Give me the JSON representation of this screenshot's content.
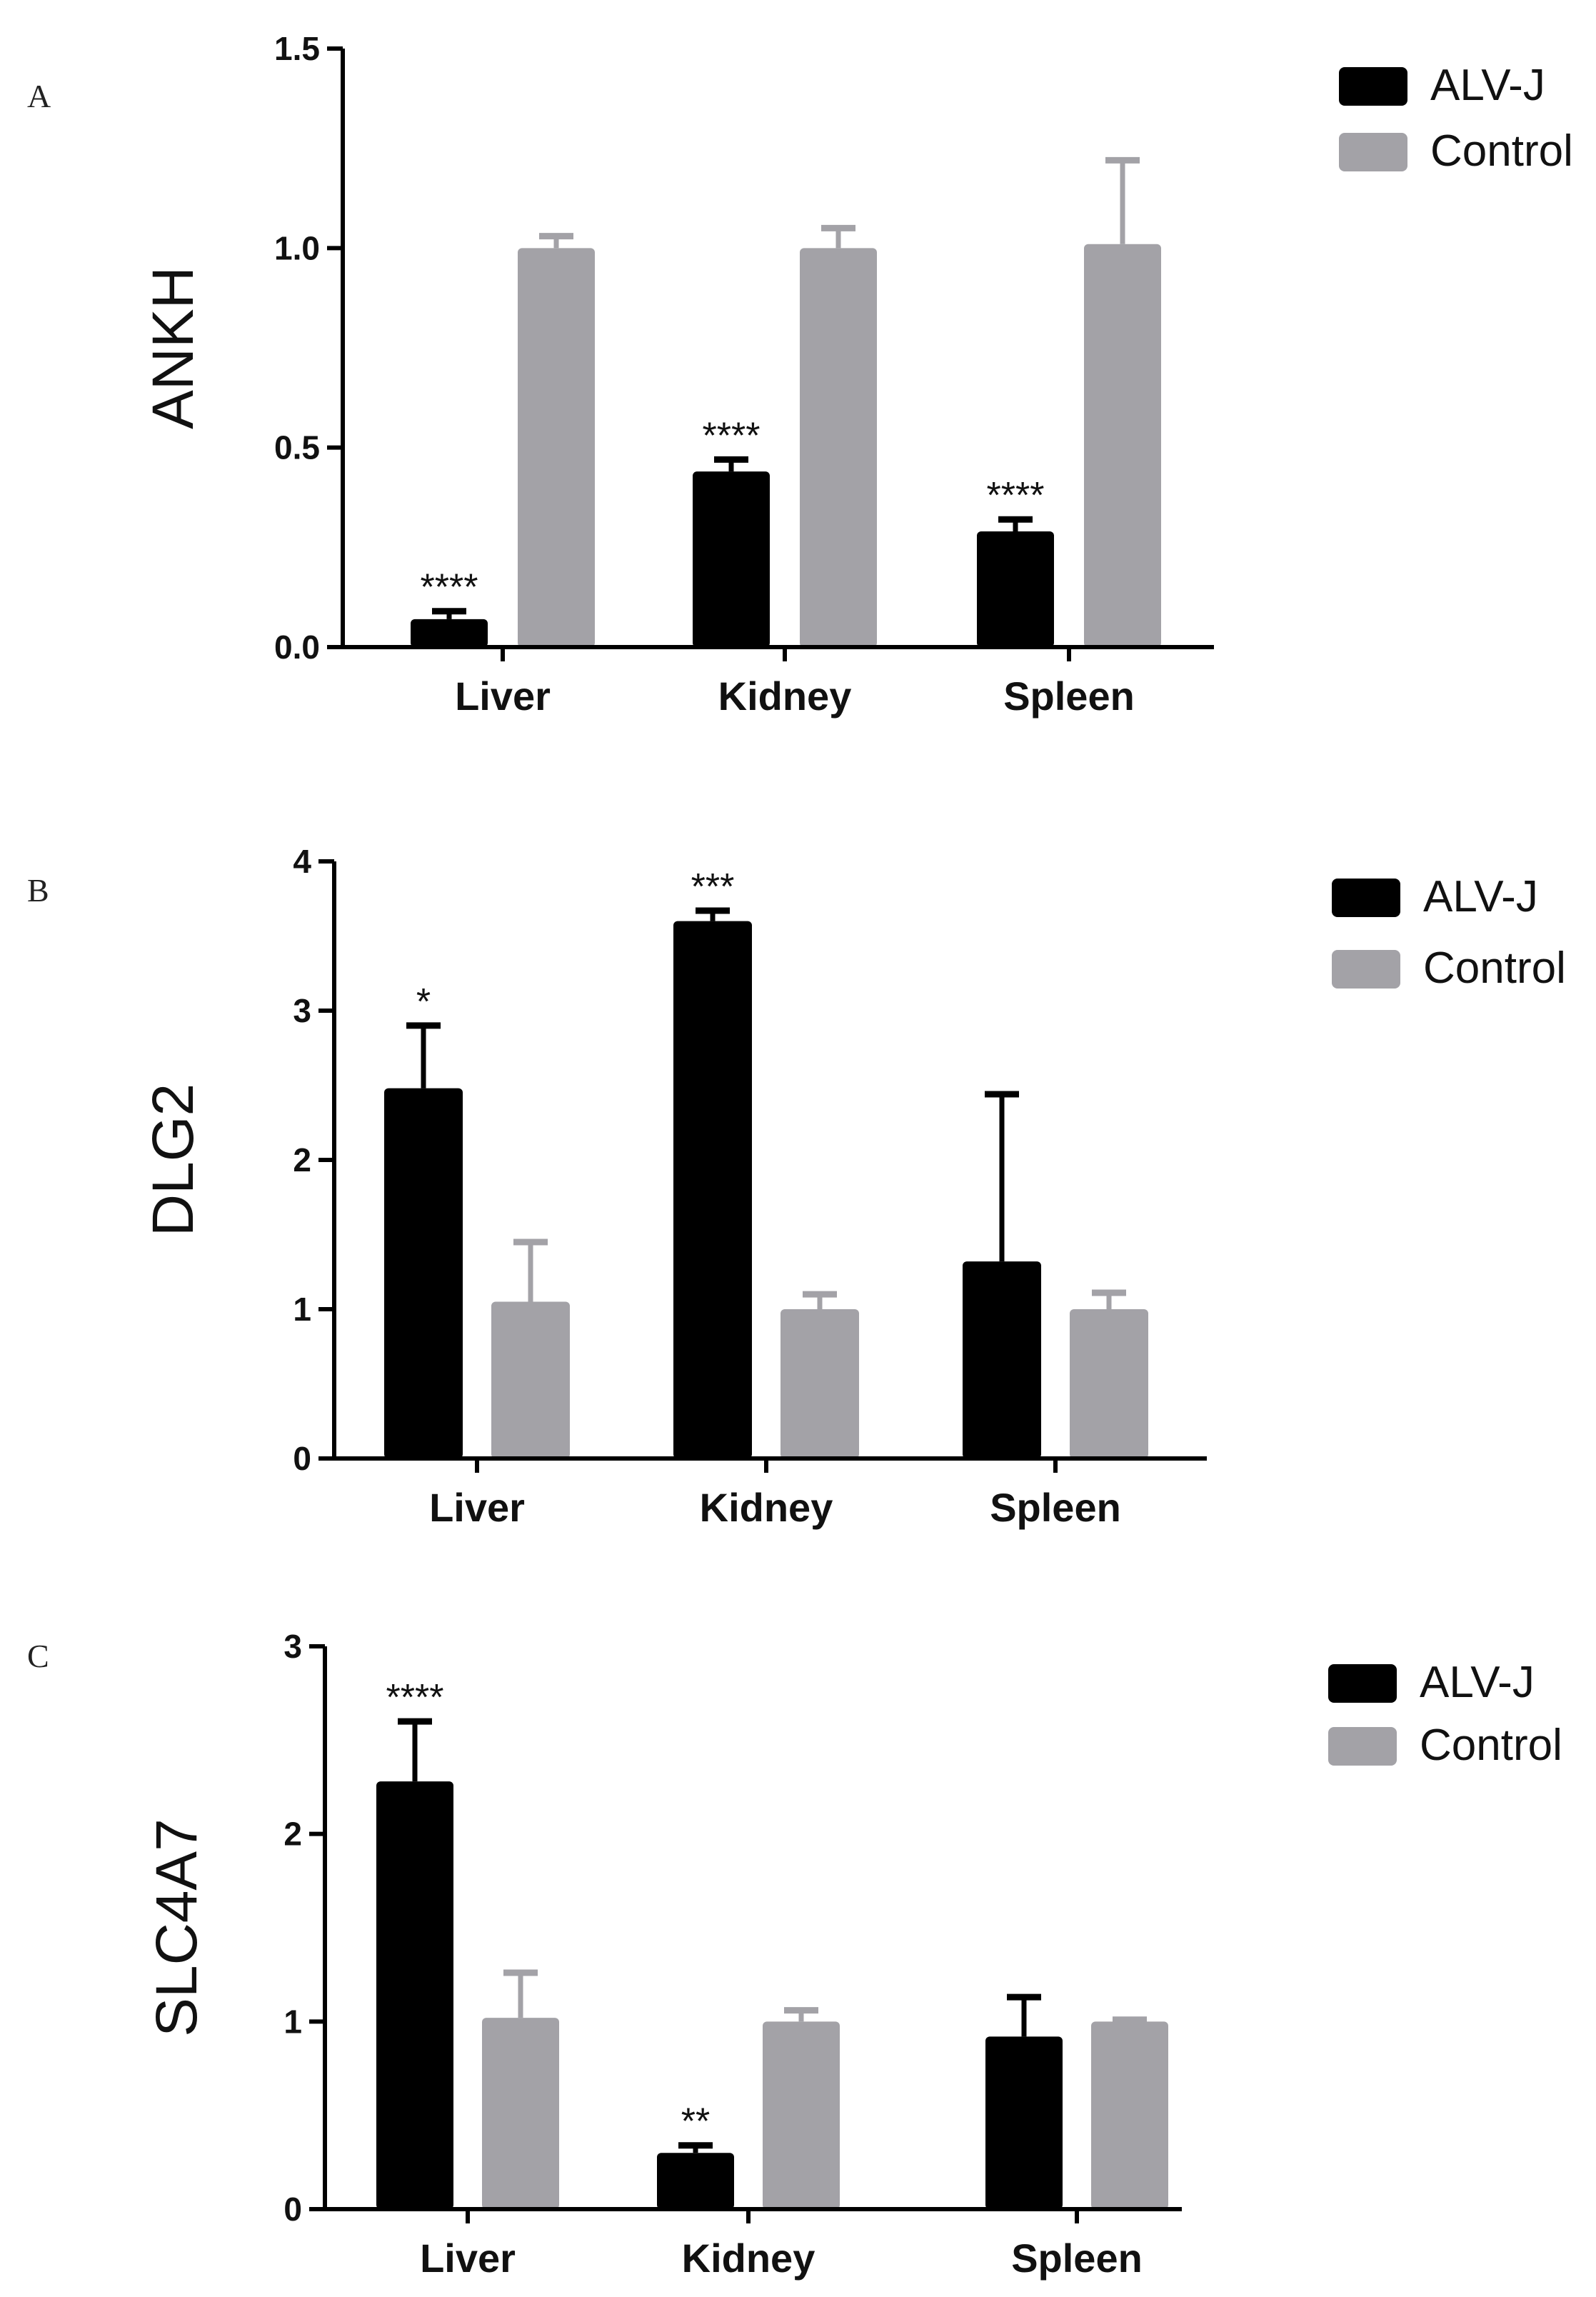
{
  "colors": {
    "alvj": "#000000",
    "control": "#a3a2a7",
    "axis": "#000000"
  },
  "chart_data": [
    {
      "type": "bar",
      "panel": "A",
      "ylabel": "ANKH",
      "categories": [
        "Liver",
        "Kidney",
        "Spleen"
      ],
      "ylim": [
        0,
        1.5
      ],
      "yticks": [
        "0.0",
        "0.5",
        "1.0",
        "1.5"
      ],
      "legend": [
        "ALV-J",
        "Control"
      ],
      "series": [
        {
          "name": "ALV-J",
          "values": [
            0.07,
            0.44,
            0.29
          ],
          "errors": [
            0.02,
            0.03,
            0.03
          ],
          "significance": [
            "****",
            "****",
            "****"
          ]
        },
        {
          "name": "Control",
          "values": [
            1.0,
            1.0,
            1.01
          ],
          "errors": [
            0.03,
            0.05,
            0.21
          ],
          "significance": [
            "",
            "",
            ""
          ]
        }
      ]
    },
    {
      "type": "bar",
      "panel": "B",
      "ylabel": "DLG2",
      "categories": [
        "Liver",
        "Kidney",
        "Spleen"
      ],
      "ylim": [
        0,
        4
      ],
      "yticks": [
        "0",
        "1",
        "2",
        "3",
        "4"
      ],
      "legend": [
        "ALV-J",
        "Control"
      ],
      "series": [
        {
          "name": "ALV-J",
          "values": [
            2.48,
            3.6,
            1.32
          ],
          "errors": [
            0.42,
            0.07,
            1.12
          ],
          "significance": [
            "*",
            "***",
            ""
          ]
        },
        {
          "name": "Control",
          "values": [
            1.05,
            1.0,
            1.0
          ],
          "errors": [
            0.4,
            0.1,
            0.11
          ],
          "significance": [
            "",
            "",
            ""
          ]
        }
      ]
    },
    {
      "type": "bar",
      "panel": "C",
      "ylabel": "SLC4A7",
      "categories": [
        "Liver",
        "Kidney",
        "Spleen"
      ],
      "ylim": [
        0,
        3
      ],
      "yticks": [
        "0",
        "1",
        "2",
        "3"
      ],
      "legend": [
        "ALV-J",
        "Control"
      ],
      "series": [
        {
          "name": "ALV-J",
          "values": [
            2.28,
            0.3,
            0.92
          ],
          "errors": [
            0.32,
            0.04,
            0.21
          ],
          "significance": [
            "****",
            "**",
            ""
          ]
        },
        {
          "name": "Control",
          "values": [
            1.02,
            1.0,
            1.0
          ],
          "errors": [
            0.24,
            0.06,
            0.01
          ],
          "significance": [
            "",
            "",
            ""
          ]
        }
      ]
    }
  ]
}
